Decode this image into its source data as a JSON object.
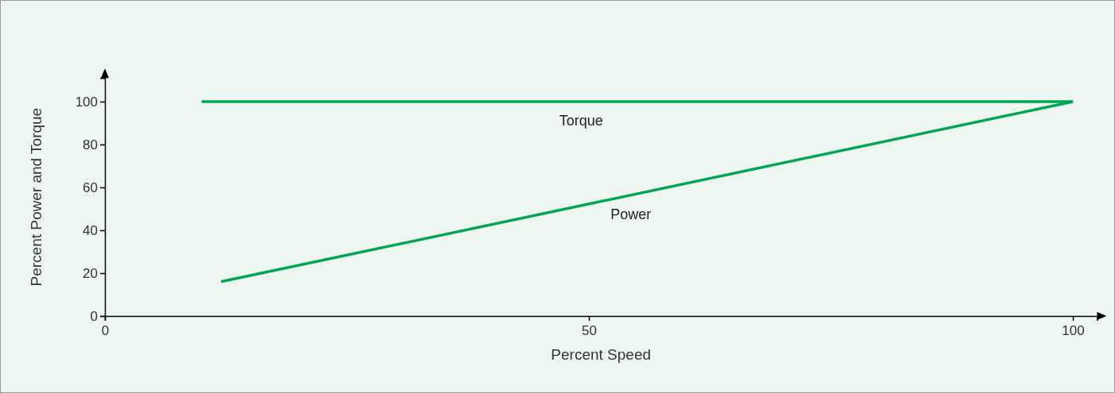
{
  "chart_data": {
    "type": "line",
    "xlabel": "Percent Speed",
    "ylabel": "Percent Power and Torque",
    "xlim": [
      0,
      102.5
    ],
    "ylim": [
      0,
      111
    ],
    "xticks": [
      0,
      50,
      100
    ],
    "yticks": [
      0,
      20,
      40,
      60,
      80,
      100
    ],
    "grid": false,
    "marker": "none",
    "line_style": "solid",
    "series": [
      {
        "name": "Torque",
        "color": "#00a651",
        "x": [
          10,
          100
        ],
        "values": [
          100,
          100
        ]
      },
      {
        "name": "Power",
        "color": "#00a651",
        "x": [
          12,
          100
        ],
        "values": [
          16,
          100
        ]
      }
    ]
  }
}
